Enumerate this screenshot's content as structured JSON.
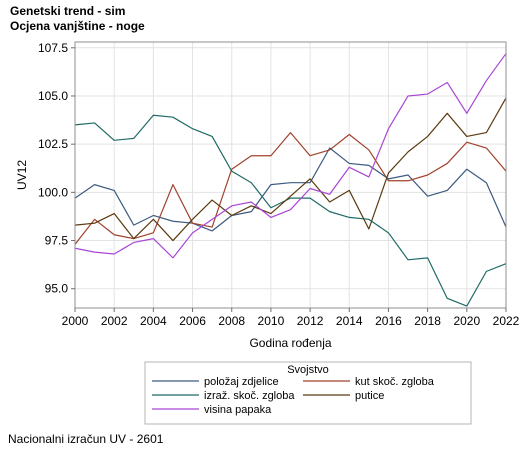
{
  "header": {
    "title": "Genetski trend - sim",
    "subtitle": "Ocjena vanjštine - noge"
  },
  "footer": {
    "text": "Nacionalni izračun UV - 2601"
  },
  "chart_data": {
    "type": "line",
    "xlabel": "Godina rođenja",
    "ylabel": "UV12",
    "xlim": [
      2000,
      2022
    ],
    "ylim": [
      94.0,
      107.8
    ],
    "xticks": [
      2000,
      2002,
      2004,
      2006,
      2008,
      2010,
      2012,
      2014,
      2016,
      2018,
      2020,
      2022
    ],
    "yticks": [
      95.0,
      97.5,
      100.0,
      102.5,
      105.0,
      107.5
    ],
    "ytick_labels": [
      "95.0",
      "97.5",
      "100.0",
      "102.5",
      "105.0",
      "107.5"
    ],
    "grid": true,
    "legend": {
      "title": "Svojstvo",
      "placement": "bottom"
    },
    "x": [
      2000,
      2001,
      2002,
      2003,
      2004,
      2005,
      2006,
      2007,
      2008,
      2009,
      2010,
      2011,
      2012,
      2013,
      2014,
      2015,
      2016,
      2017,
      2018,
      2019,
      2020,
      2021,
      2022
    ],
    "series": [
      {
        "name": "položaj zdjelice",
        "color": "#3d5a80",
        "values": [
          99.7,
          100.4,
          100.1,
          98.3,
          98.8,
          98.5,
          98.4,
          98.0,
          98.8,
          99.0,
          100.4,
          100.5,
          100.5,
          102.3,
          101.5,
          101.4,
          100.7,
          100.9,
          99.8,
          100.1,
          101.2,
          100.5,
          98.2
        ]
      },
      {
        "name": "kut skoč. zgloba",
        "color": "#a0422c",
        "values": [
          97.3,
          98.6,
          97.8,
          97.6,
          97.9,
          100.4,
          98.4,
          98.2,
          101.2,
          101.9,
          101.9,
          103.1,
          101.9,
          102.2,
          103.0,
          102.2,
          100.6,
          100.6,
          100.9,
          101.5,
          102.6,
          102.3,
          101.1
        ]
      },
      {
        "name": "izraž. skoč. zgloba",
        "color": "#1f6b66",
        "values": [
          103.5,
          103.6,
          102.7,
          102.8,
          104.0,
          103.9,
          103.3,
          102.9,
          101.1,
          100.5,
          99.2,
          99.7,
          99.7,
          99.0,
          98.7,
          98.6,
          97.9,
          96.5,
          96.6,
          94.5,
          94.1,
          95.9,
          96.3
        ]
      },
      {
        "name": "putice",
        "color": "#5a3a10",
        "values": [
          98.3,
          98.4,
          98.9,
          97.6,
          98.6,
          97.5,
          98.6,
          99.6,
          98.8,
          99.3,
          98.9,
          99.8,
          100.7,
          99.5,
          100.1,
          98.1,
          101.0,
          102.1,
          102.9,
          104.1,
          102.9,
          103.1,
          104.9
        ]
      },
      {
        "name": "visina papaka",
        "color": "#a946d6",
        "values": [
          97.1,
          96.9,
          96.8,
          97.4,
          97.6,
          96.6,
          97.9,
          98.6,
          99.3,
          99.5,
          98.7,
          99.1,
          100.2,
          99.9,
          101.3,
          100.8,
          103.3,
          105.0,
          105.1,
          105.7,
          104.1,
          105.8,
          107.2
        ]
      }
    ]
  }
}
